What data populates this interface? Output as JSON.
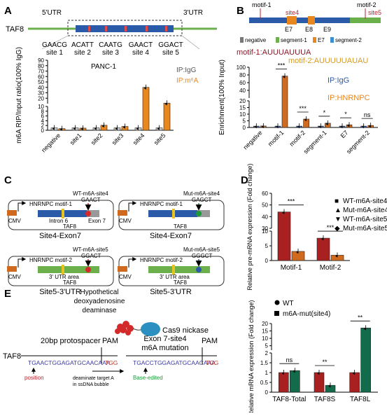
{
  "panels": {
    "A": "A",
    "B": "B",
    "C": "C",
    "D": "D",
    "E": "E"
  },
  "panelA": {
    "gene": "TAF8",
    "utr5": "5'UTR",
    "utr3": "3'UTR",
    "sites": [
      {
        "seq": "GAACG",
        "label": "site 1"
      },
      {
        "seq": "ACATT",
        "label": "site 2"
      },
      {
        "seq": "CAATG",
        "label": "site 3"
      },
      {
        "seq": "GAACT",
        "label": "site 4"
      },
      {
        "seq": "GGACT",
        "label": "site 5"
      }
    ],
    "cell": "PANC-1",
    "legend_igg": "IP:IgG",
    "legend_m6a": "IP:m⁶A",
    "ylabel": "m6A RIP/Input ratio(100% IgG)"
  },
  "panelB": {
    "motif1_tag": "motif-1",
    "motif2_tag": "motif-2",
    "site4": "site4",
    "site5": "site5",
    "exons": [
      "E7",
      "E8",
      "E9"
    ],
    "key_negative": "negative",
    "key_seg1": "segment-1",
    "key_e7": "E7",
    "key_seg2": "segment-2",
    "motif1_seq": "motif-1:AUUUAUUUA",
    "motif2_seq": "motif-2:AUUUUUAUAU",
    "legend_igg": "IP:IgG",
    "legend_hnrnpc": "IP:HNRNPC",
    "ylabel": "Enrichment(100% Input)"
  },
  "panelC": {
    "cmv": "CMV",
    "boxes": [
      {
        "title": "Site4-Exon7",
        "motif": "HNRNPC motif-1",
        "mark": "WT-m6A-site4",
        "seq": "GAACT",
        "left": "Intron 6",
        "right": "Exon 7",
        "gene": "TAF8"
      },
      {
        "title": "Site4-Exon7",
        "motif": "HNRNPC motif-1",
        "mark": "Mut-m6A-site4",
        "seq": "GAGCT",
        "left": "",
        "right": "",
        "gene": "TAF8"
      },
      {
        "title": "Site5-3'UTR",
        "motif": "HNRNPC motif-2",
        "mark": "WT-m6A-site5",
        "seq": "GGACT",
        "left": "3' UTR area",
        "right": "",
        "gene": "TAF8"
      },
      {
        "title": "Site5-3'UTR",
        "motif": "HNRNPC motif-2",
        "mark": "Mut-m6A-site5",
        "seq": "GGGCT",
        "left": "3' UTR area",
        "right": "",
        "gene": "TAF8"
      }
    ]
  },
  "panelD": {
    "ylabel": "Relative pre-mRNA expression (Fold change)",
    "legend": [
      "WT-m6A-site4",
      "Mut-m6A-site4",
      "WT-m6A-site5",
      "Mut-m6A-site5"
    ]
  },
  "panelE": {
    "enzyme": "Hypothetical deoxyadenosine deaminase",
    "cas9": "Cas9 nickase",
    "protospacer": "20bp protospacer",
    "pam": "PAM",
    "gene": "TAF8",
    "seq_wt": "TGAACTGGAGATGCAACAAA",
    "seq_mut": "TGACCTGGAGATGCAACAAA",
    "pam_seq": "TGG",
    "position": "position",
    "deaminate": "deaminate target A in ssDNA bubble",
    "mutation_title": "Exon 7-site4 m6A mutation",
    "base_edited": "Base-edited",
    "legend_wt": "WT",
    "legend_mut": "m6A-mut(site4)",
    "ylabel": "Relative mRNA expression (Fold change)"
  },
  "chart_data": [
    {
      "type": "bar",
      "panel": "A",
      "title": "PANC-1",
      "ylabel": "m6A RIP/Input ratio(100% IgG)",
      "categories": [
        "negative",
        "site1",
        "site2",
        "site3",
        "site4",
        "site5"
      ],
      "series": [
        {
          "name": "IP:IgG",
          "values": [
            1,
            1,
            1,
            1,
            1,
            1
          ]
        },
        {
          "name": "IP:m⁶A",
          "values": [
            0.7,
            0.9,
            2.1,
            1.6,
            40,
            11
          ]
        }
      ],
      "yticks": [
        0,
        2,
        4,
        6,
        8,
        10,
        20,
        30,
        40,
        50,
        60,
        70,
        80,
        90
      ],
      "ylim": [
        0,
        90
      ],
      "axis_break": true
    },
    {
      "type": "bar",
      "panel": "B",
      "ylabel": "Enrichment(100% Input)",
      "categories": [
        "negative",
        "motif-1",
        "motif-2",
        "segment-1",
        "E7",
        "segment-2"
      ],
      "series": [
        {
          "name": "IP:IgG",
          "values": [
            1,
            1,
            1,
            1,
            1,
            1
          ]
        },
        {
          "name": "IP:HNRNPC",
          "values": [
            1.1,
            77,
            6.3,
            3.2,
            2,
            1.5
          ]
        }
      ],
      "significance": [
        "",
        "***",
        "***",
        "*",
        "*",
        "ns"
      ],
      "yticks": [
        0,
        5,
        10,
        15,
        20,
        40,
        60,
        80,
        100
      ],
      "ylim": [
        0,
        100
      ],
      "axis_break": true
    },
    {
      "type": "bar",
      "panel": "D",
      "ylabel": "Relative pre-mRNA expression (Fold change)",
      "categories": [
        "Motif-1",
        "Motif-2"
      ],
      "series": [
        {
          "name": "WT",
          "values": [
            44,
            7.6
          ]
        },
        {
          "name": "Mut",
          "values": [
            3.1,
            1.8
          ]
        }
      ],
      "significance": [
        "***",
        "***"
      ],
      "yticks": [
        0,
        5,
        10,
        30,
        40,
        50,
        60
      ],
      "ylim": [
        0,
        60
      ],
      "axis_break": true
    },
    {
      "type": "bar",
      "panel": "E",
      "ylabel": "Relative mRNA expression (Fold change)",
      "categories": [
        "TAF8-Total",
        "TAF8S",
        "TAF8L"
      ],
      "series": [
        {
          "name": "WT",
          "values": [
            1,
            1,
            1
          ]
        },
        {
          "name": "m6A-mut(site4)",
          "values": [
            1.1,
            0.35,
            17
          ]
        }
      ],
      "significance": [
        "ns",
        "**",
        "**"
      ],
      "yticks": [
        0,
        0.5,
        1.0,
        1.5,
        2.0,
        5,
        10,
        15,
        20
      ],
      "ylim": [
        0,
        20
      ],
      "axis_break": true
    }
  ]
}
